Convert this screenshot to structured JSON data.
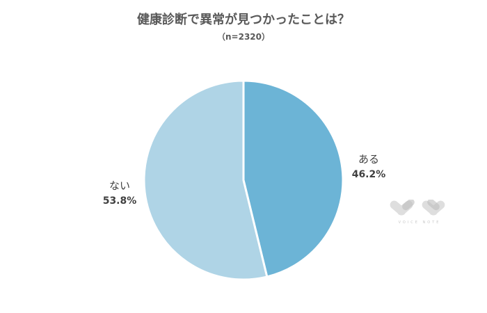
{
  "chart_data": {
    "type": "pie",
    "title": "健康診断で異常が見つかったことは？",
    "subtitle": "（n=2320）",
    "slices": [
      {
        "label": "ある",
        "value": 46.2,
        "display": "46.2%",
        "color": "#6cb4d6"
      },
      {
        "label": "ない",
        "value": 53.8,
        "display": "53.8%",
        "color": "#afd4e6"
      }
    ],
    "start": "12 o'clock",
    "direction": "clockwise"
  },
  "watermark": {
    "text": "VOICE NOTE"
  }
}
